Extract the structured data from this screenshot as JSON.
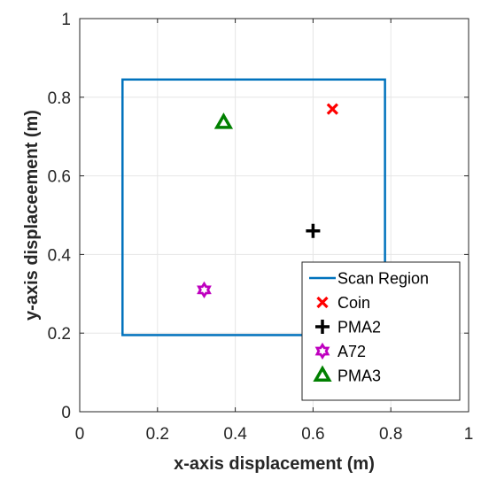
{
  "chart_data": {
    "type": "scatter",
    "title": "",
    "xlabel": "x-axis displacement (m)",
    "ylabel": "y-axis displaceement (m)",
    "xlim": [
      0,
      1
    ],
    "ylim": [
      0,
      1
    ],
    "xticks": [
      "0",
      "0.2",
      "0.4",
      "0.6",
      "0.8",
      "1"
    ],
    "yticks": [
      "0",
      "0.2",
      "0.4",
      "0.6",
      "0.8",
      "1"
    ],
    "xtick_values": [
      0,
      0.2,
      0.4,
      0.6,
      0.8,
      1
    ],
    "ytick_values": [
      0,
      0.2,
      0.4,
      0.6,
      0.8,
      1
    ],
    "grid": true,
    "legend_position": "bottom-right",
    "scan_region": {
      "name": "Scan Region",
      "color": "#0072BD",
      "x": [
        0.11,
        0.785
      ],
      "y": [
        0.195,
        0.845
      ]
    },
    "series": [
      {
        "name": "Coin",
        "marker": "x",
        "color": "#FF0000",
        "x": 0.65,
        "y": 0.77
      },
      {
        "name": "PMA2",
        "marker": "plus",
        "color": "#000000",
        "x": 0.6,
        "y": 0.46
      },
      {
        "name": "A72",
        "marker": "hexagram",
        "color": "#BF00BF",
        "x": 0.32,
        "y": 0.31
      },
      {
        "name": "PMA3",
        "marker": "triangle",
        "color": "#008000",
        "x": 0.37,
        "y": 0.735
      }
    ]
  }
}
